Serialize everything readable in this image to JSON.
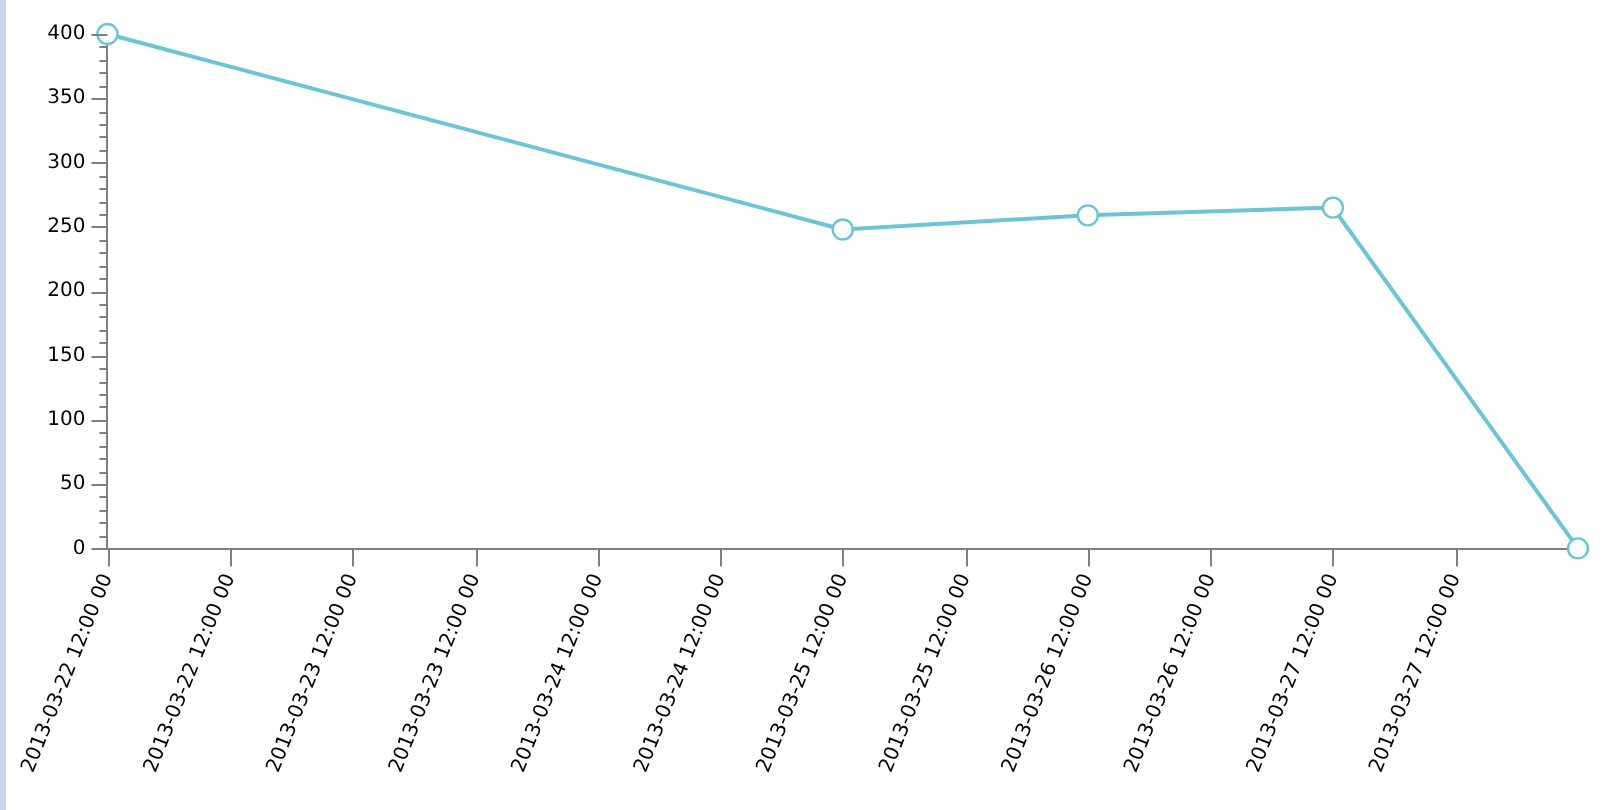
{
  "chart_data": {
    "type": "line",
    "x": [
      "2013-03-22T00:00",
      "2013-03-25T00:00",
      "2013-03-26T00:00",
      "2013-03-27T00:00",
      "2013-03-28T00:00"
    ],
    "values": [
      400,
      248,
      259,
      265,
      0
    ],
    "color": "#6cc4d4",
    "xlim": [
      "2013-03-22T00:00",
      "2013-03-28T00:00"
    ],
    "xticks": [
      {
        "value": "2013-03-22T00:00",
        "label": "2013-03-22 12:00 00"
      },
      {
        "value": "2013-03-22T12:00",
        "label": "2013-03-22 12:00 00"
      },
      {
        "value": "2013-03-23T00:00",
        "label": "2013-03-23 12:00 00"
      },
      {
        "value": "2013-03-23T12:00",
        "label": "2013-03-23 12:00 00"
      },
      {
        "value": "2013-03-24T00:00",
        "label": "2013-03-24 12:00 00"
      },
      {
        "value": "2013-03-24T12:00",
        "label": "2013-03-24 12:00 00"
      },
      {
        "value": "2013-03-25T00:00",
        "label": "2013-03-25 12:00 00"
      },
      {
        "value": "2013-03-25T12:00",
        "label": "2013-03-25 12:00 00"
      },
      {
        "value": "2013-03-26T00:00",
        "label": "2013-03-26 12:00 00"
      },
      {
        "value": "2013-03-26T12:00",
        "label": "2013-03-26 12:00 00"
      },
      {
        "value": "2013-03-27T00:00",
        "label": "2013-03-27 12:00 00"
      },
      {
        "value": "2013-03-27T12:00",
        "label": "2013-03-27 12:00 00"
      }
    ],
    "ylim": [
      0,
      400
    ],
    "yticks": [
      0,
      {
        "value": 10,
        "label": null
      },
      {
        "value": 20,
        "label": null
      },
      {
        "value": 30,
        "label": null
      },
      {
        "value": 40,
        "label": null
      },
      50,
      {
        "value": 60,
        "label": null
      },
      {
        "value": 70,
        "label": null
      },
      {
        "value": 80,
        "label": null
      },
      {
        "value": 90,
        "label": null
      },
      100,
      {
        "value": 110,
        "label": null
      },
      {
        "value": 120,
        "label": null
      },
      {
        "value": 130,
        "label": null
      },
      {
        "value": 140,
        "label": null
      },
      150,
      {
        "value": 160,
        "label": null
      },
      {
        "value": 170,
        "label": null
      },
      {
        "value": 180,
        "label": null
      },
      {
        "value": 190,
        "label": null
      },
      200,
      {
        "value": 210,
        "label": null
      },
      {
        "value": 220,
        "label": null
      },
      {
        "value": 230,
        "label": null
      },
      {
        "value": 240,
        "label": null
      },
      250,
      {
        "value": 260,
        "label": null
      },
      {
        "value": 270,
        "label": null
      },
      {
        "value": 280,
        "label": null
      },
      {
        "value": 290,
        "label": null
      },
      300,
      {
        "value": 310,
        "label": null
      },
      {
        "value": 320,
        "label": null
      },
      {
        "value": 330,
        "label": null
      },
      {
        "value": 340,
        "label": null
      },
      350,
      {
        "value": 360,
        "label": null
      },
      {
        "value": 370,
        "label": null
      },
      {
        "value": 380,
        "label": null
      },
      {
        "value": 390,
        "label": null
      },
      400
    ],
    "marker": "circle",
    "line_style": "solid"
  }
}
